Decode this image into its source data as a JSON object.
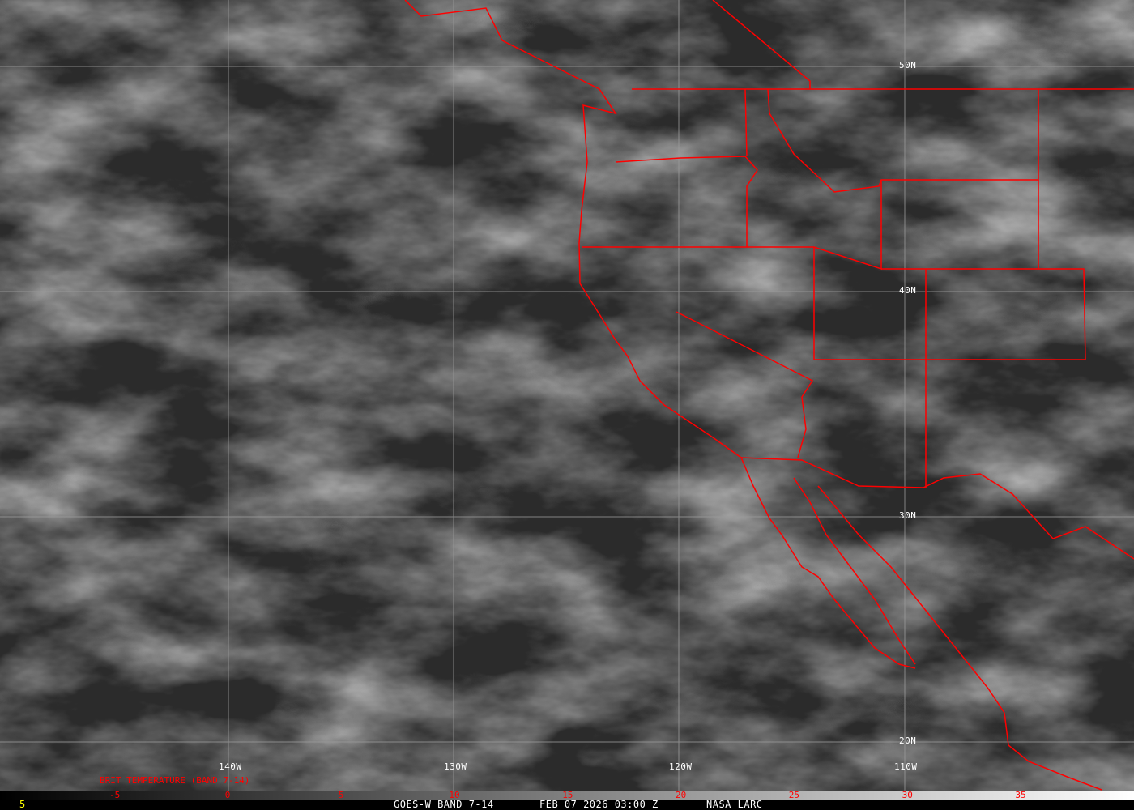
{
  "title": "GOES-W BAND 7-14",
  "timestamp": "FEB 07 2026 03:00 Z",
  "credit": "NASA LARC",
  "frame_number": "5",
  "colorbar": {
    "title": "BRIT TEMPERATURE (BAND 7-14)",
    "ticks": [
      "-5",
      "0",
      "5",
      "10",
      "15",
      "20",
      "25",
      "30",
      "35"
    ],
    "gradient": [
      "#000000",
      "#ffffff"
    ],
    "tick_color": "#ff0000"
  },
  "grid": {
    "longitudes": [
      "140W",
      "130W",
      "120W",
      "110W"
    ],
    "latitudes": [
      "50N",
      "40N",
      "30N",
      "20N"
    ]
  },
  "colors": {
    "boundaries": "#ff0000",
    "grid": "#9a9a9a",
    "frame_number": "#ffff00"
  }
}
